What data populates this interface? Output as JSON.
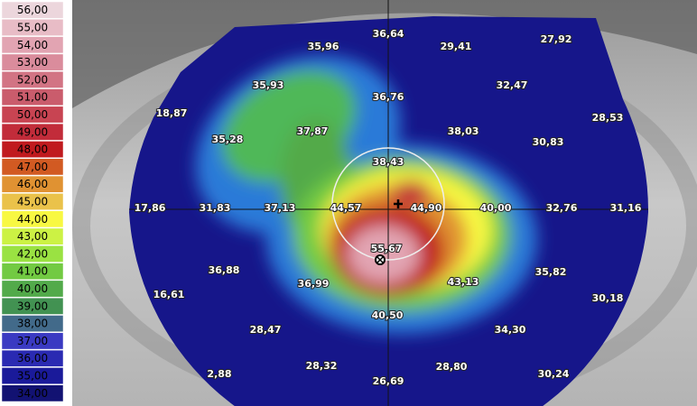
{
  "color_scale": [
    {
      "label": "56,00",
      "color": "#ecd6dc"
    },
    {
      "label": "55,00",
      "color": "#e8bcc6"
    },
    {
      "label": "54,00",
      "color": "#e2a4b2"
    },
    {
      "label": "53,00",
      "color": "#da8c9c"
    },
    {
      "label": "52,00",
      "color": "#d27484"
    },
    {
      "label": "51,00",
      "color": "#ca5c6c"
    },
    {
      "label": "50,00",
      "color": "#c84452"
    },
    {
      "label": "49,00",
      "color": "#c22c3a"
    },
    {
      "label": "48,00",
      "color": "#c01a1e"
    },
    {
      "label": "47,00",
      "color": "#d25a22"
    },
    {
      "label": "46,00",
      "color": "#e09232"
    },
    {
      "label": "45,00",
      "color": "#eac24a"
    },
    {
      "label": "44,00",
      "color": "#f8f842"
    },
    {
      "label": "43,00",
      "color": "#ccf244"
    },
    {
      "label": "42,00",
      "color": "#9ae242"
    },
    {
      "label": "41,00",
      "color": "#72ca42"
    },
    {
      "label": "40,00",
      "color": "#52aa4a"
    },
    {
      "label": "39,00",
      "color": "#429252"
    },
    {
      "label": "38,00",
      "color": "#426a8a"
    },
    {
      "label": "37,00",
      "color": "#3a3ac2"
    },
    {
      "label": "36,00",
      "color": "#2a2ab2"
    },
    {
      "label": "35,00",
      "color": "#1a1a9a"
    },
    {
      "label": "34,00",
      "color": "#121272"
    }
  ],
  "point_labels": [
    "36,64",
    "35,96",
    "29,41",
    "27,92",
    "35,93",
    "36,76",
    "32,47",
    "18,87",
    "28,53",
    "35,28",
    "37,87",
    "38,03",
    "30,83",
    "38,43",
    "17,86",
    "31,83",
    "37,13",
    "44,57",
    "44,90",
    "40,00",
    "32,76",
    "31,16",
    "55,67",
    "36,88",
    "43,13",
    "35,82",
    "16,61",
    "36,99",
    "30,18",
    "40,50",
    "28,47",
    "34,30",
    "2,88",
    "28,32",
    "28,80",
    "30,24",
    "26,69"
  ]
}
